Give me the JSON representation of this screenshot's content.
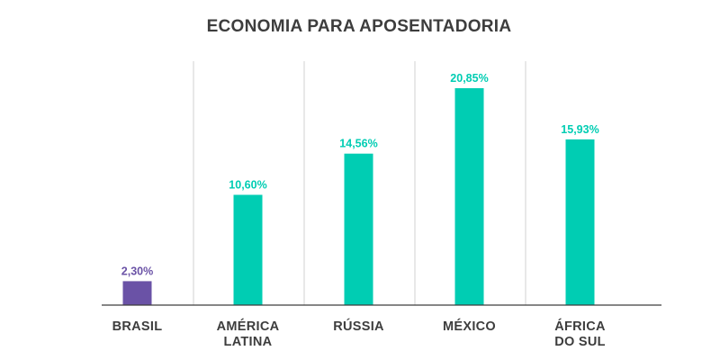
{
  "chart_data": {
    "type": "bar",
    "title": "ECONOMIA PARA APOSENTADORIA",
    "categories": [
      [
        "BRASIL"
      ],
      [
        "AMÉRICA",
        "LATINA"
      ],
      [
        "RÚSSIA"
      ],
      [
        "MÉXICO"
      ],
      [
        "ÁFRICA",
        "DO SUL"
      ]
    ],
    "values": [
      2.3,
      10.6,
      14.56,
      20.85,
      15.93
    ],
    "value_labels": [
      "2,30%",
      "10,60%",
      "14,56%",
      "20,85%",
      "15,93%"
    ],
    "bar_colors": [
      "#6a52a6",
      "#00cdb3",
      "#00cdb3",
      "#00cdb3",
      "#00cdb3"
    ],
    "label_colors": [
      "#6a52a6",
      "#00cdb3",
      "#00cdb3",
      "#00cdb3",
      "#00cdb3"
    ],
    "ylim": [
      0,
      20.85
    ],
    "grid": "vertical-separators",
    "legend": "none"
  },
  "colors": {
    "title": "#3d3d3d",
    "axis": "#3d3d3d",
    "separator": "#d2d2d2"
  }
}
